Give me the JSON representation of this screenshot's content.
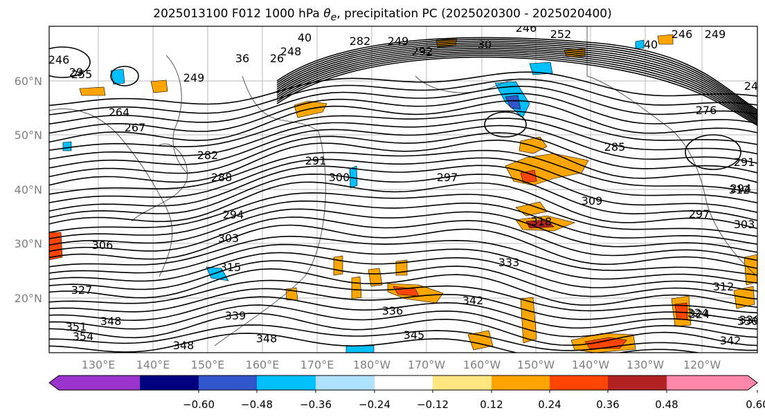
{
  "title": {
    "prefix": "2025013100 F012 1000 hPa ",
    "theta": "θ",
    "theta_sub": "e",
    "suffix": ", precipitation PC (2025020300 - 2025020400)"
  },
  "map": {
    "lat_labels": [
      "20°N",
      "30°N",
      "40°N",
      "50°N",
      "60°N"
    ],
    "lon_labels": [
      "130°E",
      "140°E",
      "150°E",
      "160°E",
      "170°E",
      "180°W",
      "170°W",
      "160°W",
      "150°W",
      "140°W",
      "130°W",
      "120°W"
    ],
    "contour_labels": [
      "246",
      "249",
      "252",
      "246",
      "249",
      "255",
      "249",
      "246",
      "267",
      "282",
      "288",
      "291",
      "294",
      "297",
      "300",
      "303",
      "306",
      "309",
      "312",
      "315",
      "318",
      "324",
      "327",
      "330",
      "333",
      "336",
      "339",
      "342",
      "345",
      "348",
      "348",
      "348",
      "351",
      "354",
      "285",
      "294",
      "297",
      "303",
      "312",
      "324",
      "330",
      "342",
      "26",
      "36",
      "291",
      "282",
      "248",
      "276",
      "40",
      "292",
      "264",
      "40",
      "24",
      "29",
      "30"
    ],
    "colors": {
      "contour": "#000000",
      "coast": "#555555",
      "grid": "#bbbbbb"
    }
  },
  "colorbar": {
    "tick_labels": [
      "−0.60",
      "−0.48",
      "−0.36",
      "−0.24",
      "−0.12",
      "0.12",
      "0.24",
      "0.36",
      "0.48",
      "0.60"
    ],
    "colors": [
      "#9933cc",
      "#000080",
      "#3355cc",
      "#00bfff",
      "#b0e2ff",
      "#ffffff",
      "#ffe680",
      "#ffa500",
      "#ff4500",
      "#b22222",
      "#ff88aa"
    ]
  }
}
